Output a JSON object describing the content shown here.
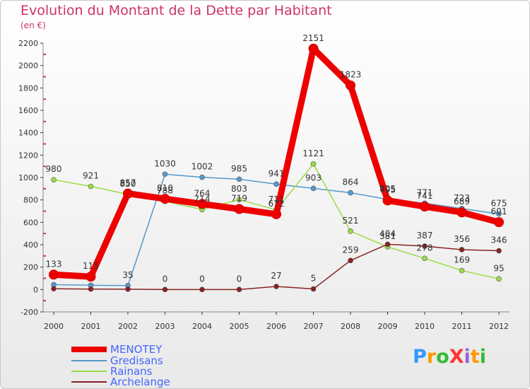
{
  "title": "Evolution du Montant de la Dette par Habitant",
  "subtitle": "(en €)",
  "logo_text": "ProXiti",
  "chart_data": {
    "type": "line",
    "x": [
      "2000",
      "2001",
      "2002",
      "2003",
      "2004",
      "2005",
      "2006",
      "2007",
      "2008",
      "2009",
      "2010",
      "2011",
      "2012"
    ],
    "ylim": [
      -200,
      2200
    ],
    "yticks": [
      -200,
      0,
      200,
      400,
      600,
      800,
      1000,
      1200,
      1400,
      1600,
      1800,
      2000,
      2200
    ],
    "series": [
      {
        "name": "Gredisans",
        "color": "#5599cc",
        "values": [
          43,
          38,
          35,
          1030,
          1002,
          985,
          941,
          903,
          864,
          805,
          771,
          723,
          675
        ]
      },
      {
        "name": "Rainans",
        "color": "#99dd44",
        "values": [
          980,
          921,
          850,
          788,
          714,
          803,
          711,
          1121,
          521,
          381,
          278,
          169,
          95
        ]
      },
      {
        "name": "Archelange",
        "color": "#882222",
        "values": [
          7,
          4,
          3,
          0,
          0,
          0,
          27,
          5,
          259,
          404,
          387,
          356,
          346
        ]
      },
      {
        "name": "MENOTEY",
        "color": "#ee0000",
        "values": [
          133,
          115,
          857,
          810,
          764,
          719,
          672,
          2151,
          1823,
          795,
          741,
          689,
          601
        ]
      }
    ],
    "labels": [
      {
        "s": 3,
        "i": 0,
        "t": "133"
      },
      {
        "s": 3,
        "i": 1,
        "t": "115"
      },
      {
        "s": 3,
        "i": 2,
        "t": "857"
      },
      {
        "s": 1,
        "i": 2,
        "t": "850"
      },
      {
        "s": 3,
        "i": 3,
        "t": "810"
      },
      {
        "s": 1,
        "i": 3,
        "t": "788"
      },
      {
        "s": 3,
        "i": 4,
        "t": "764"
      },
      {
        "s": 1,
        "i": 4,
        "t": "714"
      },
      {
        "s": 3,
        "i": 5,
        "t": "719"
      },
      {
        "s": 1,
        "i": 5,
        "t": "803"
      },
      {
        "s": 3,
        "i": 6,
        "t": "672"
      },
      {
        "s": 1,
        "i": 6,
        "t": "711"
      },
      {
        "s": 3,
        "i": 7,
        "t": "2151"
      },
      {
        "s": 3,
        "i": 8,
        "t": "1823"
      },
      {
        "s": 3,
        "i": 9,
        "t": "795"
      },
      {
        "s": 0,
        "i": 9,
        "t": "805"
      },
      {
        "s": 3,
        "i": 10,
        "t": "741"
      },
      {
        "s": 0,
        "i": 10,
        "t": "771"
      },
      {
        "s": 3,
        "i": 11,
        "t": "689"
      },
      {
        "s": 0,
        "i": 11,
        "t": "723"
      },
      {
        "s": 3,
        "i": 12,
        "t": "601"
      },
      {
        "s": 0,
        "i": 12,
        "t": "675"
      },
      {
        "s": 0,
        "i": 2,
        "t": "35"
      },
      {
        "s": 0,
        "i": 3,
        "t": "1030"
      },
      {
        "s": 0,
        "i": 4,
        "t": "1002"
      },
      {
        "s": 0,
        "i": 5,
        "t": "985"
      },
      {
        "s": 0,
        "i": 6,
        "t": "941"
      },
      {
        "s": 0,
        "i": 7,
        "t": "903"
      },
      {
        "s": 0,
        "i": 8,
        "t": "864"
      },
      {
        "s": 1,
        "i": 0,
        "t": "980"
      },
      {
        "s": 1,
        "i": 1,
        "t": "921"
      },
      {
        "s": 1,
        "i": 7,
        "t": "1121"
      },
      {
        "s": 1,
        "i": 8,
        "t": "521"
      },
      {
        "s": 1,
        "i": 9,
        "t": "381"
      },
      {
        "s": 1,
        "i": 10,
        "t": "278"
      },
      {
        "s": 1,
        "i": 11,
        "t": "169"
      },
      {
        "s": 1,
        "i": 12,
        "t": "95"
      },
      {
        "s": 2,
        "i": 3,
        "t": "0"
      },
      {
        "s": 2,
        "i": 4,
        "t": "0"
      },
      {
        "s": 2,
        "i": 5,
        "t": "0"
      },
      {
        "s": 2,
        "i": 6,
        "t": "27"
      },
      {
        "s": 2,
        "i": 7,
        "t": "5"
      },
      {
        "s": 2,
        "i": 8,
        "t": "259"
      },
      {
        "s": 2,
        "i": 9,
        "t": "404"
      },
      {
        "s": 2,
        "i": 10,
        "t": "387"
      },
      {
        "s": 2,
        "i": 11,
        "t": "356"
      },
      {
        "s": 2,
        "i": 12,
        "t": "346"
      }
    ],
    "grid": false,
    "legend_position": "bottom-left"
  },
  "legend": [
    {
      "label": "MENOTEY",
      "color": "#ee0000",
      "text_color": "#4466ff"
    },
    {
      "label": "Gredisans",
      "color": "#5599cc",
      "text_color": "#4466ff"
    },
    {
      "label": "Rainans",
      "color": "#99dd44",
      "text_color": "#4466ff"
    },
    {
      "label": "Archelange",
      "color": "#882222",
      "text_color": "#4466ff"
    }
  ]
}
